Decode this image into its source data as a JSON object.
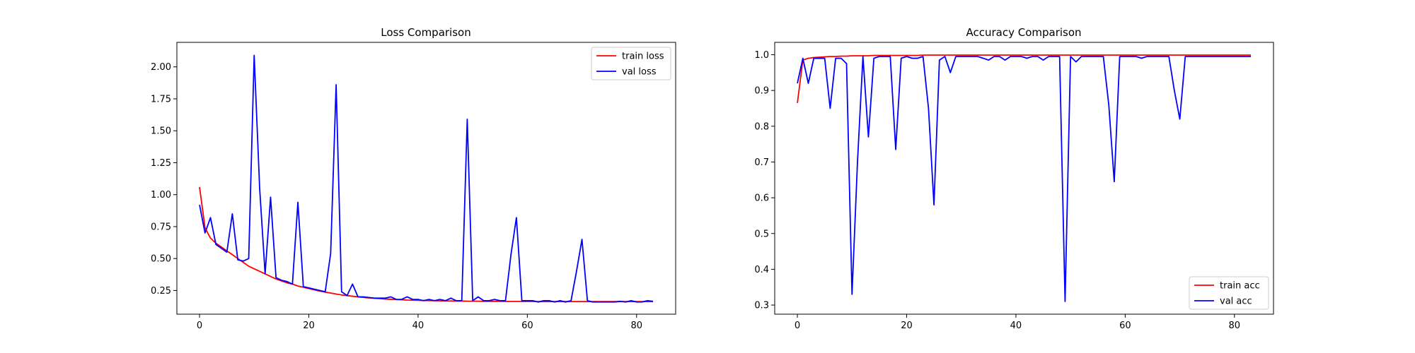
{
  "chart_data": [
    {
      "type": "line",
      "title": "Loss Comparison",
      "xlabel": "",
      "ylabel": "",
      "xlim": [
        -4.15,
        87.15
      ],
      "ylim": [
        0.0645,
        2.192
      ],
      "xticks": [
        0,
        20,
        40,
        60,
        80
      ],
      "xtick_labels": [
        "0",
        "20",
        "40",
        "60",
        "80"
      ],
      "yticks": [
        0.25,
        0.5,
        0.75,
        1.0,
        1.25,
        1.5,
        1.75,
        2.0
      ],
      "ytick_labels": [
        "0.25",
        "0.50",
        "0.75",
        "1.00",
        "1.25",
        "1.50",
        "1.75",
        "2.00"
      ],
      "grid": false,
      "legend_position": "top-right",
      "series": [
        {
          "name": "train loss",
          "color": "#ff0000",
          "x": [
            0,
            1,
            2,
            3,
            4,
            5,
            6,
            7,
            8,
            9,
            10,
            11,
            12,
            13,
            14,
            15,
            16,
            17,
            18,
            19,
            20,
            21,
            22,
            23,
            24,
            25,
            26,
            27,
            28,
            29,
            30,
            31,
            32,
            33,
            34,
            35,
            36,
            37,
            38,
            39,
            40,
            41,
            42,
            43,
            44,
            45,
            46,
            47,
            48,
            49,
            50,
            51,
            52,
            53,
            54,
            55,
            56,
            57,
            58,
            59,
            60,
            61,
            62,
            63,
            64,
            65,
            66,
            67,
            68,
            69,
            70,
            71,
            72,
            73,
            74,
            75,
            76,
            77,
            78,
            79,
            80,
            81,
            82,
            83
          ],
          "y": [
            1.06,
            0.74,
            0.66,
            0.62,
            0.59,
            0.56,
            0.53,
            0.5,
            0.47,
            0.44,
            0.42,
            0.4,
            0.38,
            0.36,
            0.34,
            0.325,
            0.31,
            0.3,
            0.285,
            0.275,
            0.265,
            0.255,
            0.245,
            0.237,
            0.23,
            0.222,
            0.215,
            0.21,
            0.205,
            0.2,
            0.196,
            0.192,
            0.189,
            0.186,
            0.183,
            0.181,
            0.179,
            0.177,
            0.175,
            0.174,
            0.173,
            0.172,
            0.171,
            0.17,
            0.169,
            0.168,
            0.168,
            0.167,
            0.167,
            0.166,
            0.166,
            0.166,
            0.165,
            0.165,
            0.165,
            0.165,
            0.164,
            0.164,
            0.164,
            0.164,
            0.164,
            0.164,
            0.163,
            0.163,
            0.163,
            0.163,
            0.163,
            0.163,
            0.163,
            0.163,
            0.163,
            0.163,
            0.163,
            0.163,
            0.163,
            0.163,
            0.163,
            0.163,
            0.163,
            0.163,
            0.163,
            0.163,
            0.163,
            0.163
          ]
        },
        {
          "name": "val loss",
          "color": "#0000ff",
          "x": [
            0,
            1,
            2,
            3,
            4,
            5,
            6,
            7,
            8,
            9,
            10,
            11,
            12,
            13,
            14,
            15,
            16,
            17,
            18,
            19,
            20,
            21,
            22,
            23,
            24,
            25,
            26,
            27,
            28,
            29,
            30,
            31,
            32,
            33,
            34,
            35,
            36,
            37,
            38,
            39,
            40,
            41,
            42,
            43,
            44,
            45,
            46,
            47,
            48,
            49,
            50,
            51,
            52,
            53,
            54,
            55,
            56,
            57,
            58,
            59,
            60,
            61,
            62,
            63,
            64,
            65,
            66,
            67,
            68,
            69,
            70,
            71,
            72,
            73,
            74,
            75,
            76,
            77,
            78,
            79,
            80,
            81,
            82,
            83
          ],
          "y": [
            0.92,
            0.7,
            0.82,
            0.61,
            0.58,
            0.55,
            0.85,
            0.49,
            0.48,
            0.5,
            2.09,
            1.05,
            0.38,
            0.98,
            0.35,
            0.33,
            0.32,
            0.3,
            0.94,
            0.28,
            0.27,
            0.26,
            0.25,
            0.24,
            0.54,
            1.86,
            0.24,
            0.21,
            0.3,
            0.2,
            0.2,
            0.195,
            0.19,
            0.19,
            0.19,
            0.2,
            0.18,
            0.18,
            0.2,
            0.18,
            0.18,
            0.17,
            0.18,
            0.17,
            0.18,
            0.17,
            0.19,
            0.17,
            0.17,
            1.59,
            0.17,
            0.2,
            0.17,
            0.17,
            0.18,
            0.17,
            0.17,
            0.53,
            0.82,
            0.17,
            0.17,
            0.17,
            0.16,
            0.17,
            0.17,
            0.16,
            0.17,
            0.16,
            0.17,
            0.4,
            0.65,
            0.17,
            0.16,
            0.16,
            0.16,
            0.16,
            0.16,
            0.165,
            0.16,
            0.17,
            0.16,
            0.16,
            0.17,
            0.165
          ]
        }
      ]
    },
    {
      "type": "line",
      "title": "Accuracy Comparison",
      "xlabel": "",
      "ylabel": "",
      "xlim": [
        -4.15,
        87.15
      ],
      "ylim": [
        0.2745,
        1.0345
      ],
      "xticks": [
        0,
        20,
        40,
        60,
        80
      ],
      "xtick_labels": [
        "0",
        "20",
        "40",
        "60",
        "80"
      ],
      "yticks": [
        0.3,
        0.4,
        0.5,
        0.6,
        0.7,
        0.8,
        0.9,
        1.0
      ],
      "ytick_labels": [
        "0.3",
        "0.4",
        "0.5",
        "0.6",
        "0.7",
        "0.8",
        "0.9",
        "1.0"
      ],
      "grid": false,
      "legend_position": "bottom-right",
      "series": [
        {
          "name": "train acc",
          "color": "#ff0000",
          "x": [
            0,
            1,
            2,
            3,
            4,
            5,
            6,
            7,
            8,
            9,
            10,
            11,
            12,
            13,
            14,
            15,
            16,
            17,
            18,
            19,
            20,
            21,
            22,
            23,
            24,
            25,
            26,
            27,
            28,
            29,
            30,
            31,
            32,
            33,
            34,
            35,
            36,
            37,
            38,
            39,
            40,
            41,
            42,
            43,
            44,
            45,
            46,
            47,
            48,
            49,
            50,
            51,
            52,
            53,
            54,
            55,
            56,
            57,
            58,
            59,
            60,
            61,
            62,
            63,
            64,
            65,
            66,
            67,
            68,
            69,
            70,
            71,
            72,
            73,
            74,
            75,
            76,
            77,
            78,
            79,
            80,
            81,
            82,
            83
          ],
          "y": [
            0.865,
            0.985,
            0.99,
            0.992,
            0.993,
            0.994,
            0.995,
            0.995,
            0.996,
            0.996,
            0.997,
            0.997,
            0.997,
            0.997,
            0.998,
            0.998,
            0.998,
            0.998,
            0.998,
            0.998,
            0.998,
            0.998,
            0.998,
            0.999,
            0.999,
            0.999,
            0.999,
            0.999,
            0.999,
            0.999,
            0.999,
            0.999,
            0.999,
            0.999,
            0.999,
            0.999,
            0.999,
            0.999,
            0.999,
            0.999,
            0.999,
            0.999,
            0.999,
            0.999,
            0.999,
            0.999,
            0.999,
            0.999,
            0.999,
            0.999,
            0.999,
            0.999,
            0.999,
            0.999,
            0.999,
            0.999,
            0.999,
            0.999,
            0.999,
            0.999,
            0.999,
            0.999,
            0.999,
            0.999,
            0.999,
            0.999,
            0.999,
            0.999,
            0.999,
            0.999,
            0.999,
            0.999,
            0.999,
            0.999,
            0.999,
            0.999,
            0.999,
            0.999,
            0.999,
            0.999,
            0.999,
            0.999,
            0.999,
            0.999
          ]
        },
        {
          "name": "val acc",
          "color": "#0000ff",
          "x": [
            0,
            1,
            2,
            3,
            4,
            5,
            6,
            7,
            8,
            9,
            10,
            11,
            12,
            13,
            14,
            15,
            16,
            17,
            18,
            19,
            20,
            21,
            22,
            23,
            24,
            25,
            26,
            27,
            28,
            29,
            30,
            31,
            32,
            33,
            34,
            35,
            36,
            37,
            38,
            39,
            40,
            41,
            42,
            43,
            44,
            45,
            46,
            47,
            48,
            49,
            50,
            51,
            52,
            53,
            54,
            55,
            56,
            57,
            58,
            59,
            60,
            61,
            62,
            63,
            64,
            65,
            66,
            67,
            68,
            69,
            70,
            71,
            72,
            73,
            74,
            75,
            76,
            77,
            78,
            79,
            80,
            81,
            82,
            83
          ],
          "y": [
            0.92,
            0.99,
            0.92,
            0.99,
            0.99,
            0.99,
            0.85,
            0.99,
            0.99,
            0.975,
            0.33,
            0.7,
            0.995,
            0.77,
            0.99,
            0.995,
            0.995,
            0.995,
            0.735,
            0.99,
            0.995,
            0.99,
            0.99,
            0.995,
            0.85,
            0.58,
            0.985,
            0.995,
            0.95,
            0.995,
            0.995,
            0.995,
            0.995,
            0.995,
            0.99,
            0.985,
            0.995,
            0.995,
            0.985,
            0.995,
            0.995,
            0.995,
            0.99,
            0.995,
            0.995,
            0.985,
            0.995,
            0.995,
            0.995,
            0.31,
            0.995,
            0.98,
            0.995,
            0.995,
            0.995,
            0.995,
            0.995,
            0.86,
            0.645,
            0.995,
            0.995,
            0.995,
            0.995,
            0.99,
            0.995,
            0.995,
            0.995,
            0.995,
            0.995,
            0.9,
            0.82,
            0.995,
            0.995,
            0.995,
            0.995,
            0.995,
            0.995,
            0.995,
            0.995,
            0.995,
            0.995,
            0.995,
            0.995,
            0.995
          ]
        }
      ]
    }
  ]
}
